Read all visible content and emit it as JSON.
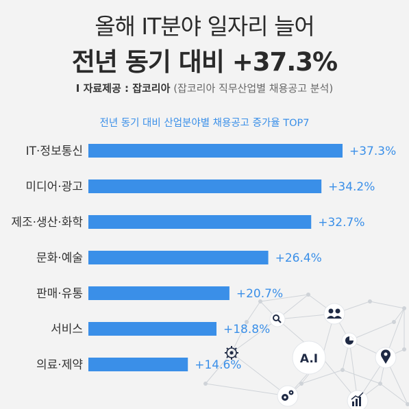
{
  "header": {
    "title_line1": "올해 IT분야 일자리 늘어",
    "title_line2": "전년 동기 대비 +37.3%",
    "source_label": "I 자료제공 : 잡코리아",
    "source_detail": "(잡코리아 직무산업별 채용공고 분석)"
  },
  "decor": {
    "ai_text": "A.I",
    "icons": [
      "search-icon",
      "people-icon",
      "pie-chart-icon",
      "location-pin-icon",
      "gear-icon",
      "gears-icon",
      "bar-chart-icon"
    ]
  },
  "colors": {
    "bar": "#3a8fe8",
    "value_label": "#3a8fe8",
    "category_label": "#333333",
    "network": "#cfd3d8",
    "icon_circle": "#1f2a44"
  },
  "chart_data": {
    "type": "bar",
    "orientation": "horizontal",
    "title": "전년 동기 대비 산업분야별 채용공고 증가율 TOP7",
    "categories": [
      "IT·정보통신",
      "미디어·광고",
      "제조·생산·화학",
      "문화·예술",
      "판매·유통",
      "서비스",
      "의료·제약"
    ],
    "values": [
      37.3,
      34.2,
      32.7,
      26.4,
      20.7,
      18.8,
      14.6
    ],
    "value_labels": [
      "+37.3%",
      "+34.2%",
      "+32.7%",
      "+26.4%",
      "+20.7%",
      "+18.8%",
      "+14.6%"
    ],
    "unit": "%",
    "xlim": [
      0,
      37.3
    ],
    "grid": false,
    "legend": "none"
  }
}
